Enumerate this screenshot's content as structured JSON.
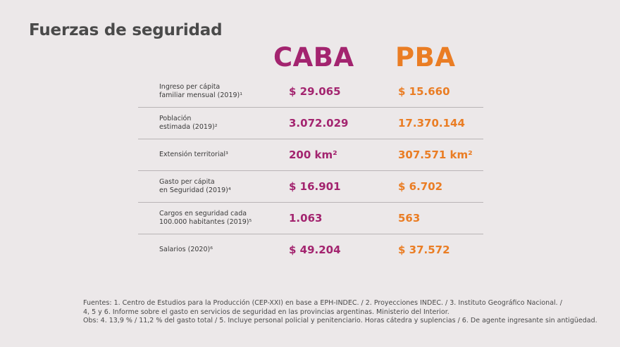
{
  "title": "Fuerzas de seguridad",
  "columns": {
    "caba": "CABA",
    "pba": "PBA"
  },
  "rows": [
    {
      "label": "Ingreso per cápita\nfamiliar mensual (2019)¹",
      "caba": "$ 29.065",
      "pba": "$ 15.660"
    },
    {
      "label": "Población\nestimada (2019)²",
      "caba": "3.072.029",
      "pba": "17.370.144"
    },
    {
      "label": "Extensión territorial³",
      "caba": "200 km²",
      "pba": "307.571 km²"
    },
    {
      "label": "Gasto per cápita\nen Seguridad (2019)⁴",
      "caba": "$ 16.901",
      "pba": "$ 6.702"
    },
    {
      "label": "Cargos en seguridad cada\n100.000 habitantes (2019)⁵",
      "caba": "1.063",
      "pba": "563"
    },
    {
      "label": "Salarios (2020)⁶",
      "caba": "$ 49.204",
      "pba": "$ 37.572"
    }
  ],
  "footnotes": {
    "line1": "Fuentes: 1. Centro de Estudios para la Producción (CEP-XXI) en base a EPH-INDEC. / 2. Proyecciones INDEC. / 3. Instituto Geográfico Nacional. /",
    "line2": "4, 5 y 6. Informe sobre el gasto en servicios de seguridad en las provincias argentinas. Ministerio del Interior.",
    "line3": "Obs: 4. 13,9 % / 11,2 % del gasto total / 5. Incluye personal policial y penitenciario. Horas cátedra y suplencias / 6. De agente ingresante sin antigüedad."
  },
  "colors": {
    "caba": "#a3246f",
    "pba": "#ea7d24",
    "background": "#ece8e9"
  }
}
